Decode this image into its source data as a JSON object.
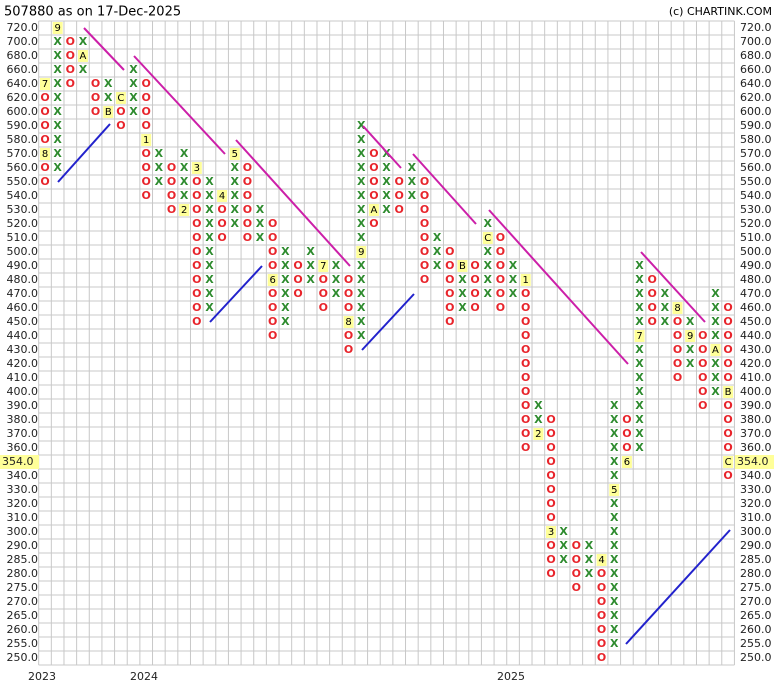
{
  "chart_data": {
    "type": "point-and-figure",
    "title": "507880 as on 17-Dec-2025",
    "credit": "(c) CHARTINK.COM",
    "colors": {
      "X": "#2e8b2e",
      "O": "#e8242b",
      "label_bg": "#ffff99",
      "grid": "#c8c8c8"
    },
    "grid": true,
    "yticks": [
      {
        "value": 720,
        "label": "720.0"
      },
      {
        "value": 700,
        "label": "700.0"
      },
      {
        "value": 680,
        "label": "680.0"
      },
      {
        "value": 660,
        "label": "660.0"
      },
      {
        "value": 640,
        "label": "640.0"
      },
      {
        "value": 620,
        "label": "620.0"
      },
      {
        "value": 600,
        "label": "600.0"
      },
      {
        "value": 590,
        "label": "590.0"
      },
      {
        "value": 580,
        "label": "580.0"
      },
      {
        "value": 570,
        "label": "570.0"
      },
      {
        "value": 560,
        "label": "560.0"
      },
      {
        "value": 550,
        "label": "550.0"
      },
      {
        "value": 540,
        "label": "540.0"
      },
      {
        "value": 530,
        "label": "530.0"
      },
      {
        "value": 520,
        "label": "520.0"
      },
      {
        "value": 510,
        "label": "510.0"
      },
      {
        "value": 500,
        "label": "500.0"
      },
      {
        "value": 490,
        "label": "490.0"
      },
      {
        "value": 480,
        "label": "480.0"
      },
      {
        "value": 470,
        "label": "470.0"
      },
      {
        "value": 460,
        "label": "460.0"
      },
      {
        "value": 450,
        "label": "450.0"
      },
      {
        "value": 440,
        "label": "440.0"
      },
      {
        "value": 430,
        "label": "430.0"
      },
      {
        "value": 420,
        "label": "420.0"
      },
      {
        "value": 410,
        "label": "410.0"
      },
      {
        "value": 400,
        "label": "400.0"
      },
      {
        "value": 390,
        "label": "390.0"
      },
      {
        "value": 380,
        "label": "380.0"
      },
      {
        "value": 370,
        "label": "370.0"
      },
      {
        "value": 360,
        "label": "360.0"
      },
      {
        "value": 350,
        "label": null
      },
      {
        "value": 340,
        "label": "340.0"
      },
      {
        "value": 330,
        "label": "330.0"
      },
      {
        "value": 320,
        "label": "320.0"
      },
      {
        "value": 310,
        "label": "310.0"
      },
      {
        "value": 300,
        "label": "300.0"
      },
      {
        "value": 290,
        "label": "290.0"
      },
      {
        "value": 285,
        "label": "285.0"
      },
      {
        "value": 280,
        "label": "280.0"
      },
      {
        "value": 275,
        "label": "275.0"
      },
      {
        "value": 270,
        "label": "270.0"
      },
      {
        "value": 265,
        "label": "265.0"
      },
      {
        "value": 260,
        "label": "260.0"
      },
      {
        "value": 255,
        "label": "255.0"
      },
      {
        "value": 250,
        "label": "250.0"
      }
    ],
    "last_price": {
      "value": 354,
      "label": "354.0"
    },
    "years": [
      "2023",
      "2024",
      "2025"
    ],
    "columns": [
      {
        "type": "O",
        "high": 640,
        "low": 550,
        "labels": [
          {
            "price": 640,
            "label": "7"
          },
          {
            "price": 570,
            "label": "8"
          }
        ]
      },
      {
        "type": "X",
        "high": 720,
        "low": 560,
        "labels": [
          {
            "price": 720,
            "label": "9"
          }
        ]
      },
      {
        "type": "O",
        "high": 700,
        "low": 640,
        "labels": []
      },
      {
        "type": "X",
        "high": 700,
        "low": 660,
        "labels": [
          {
            "price": 680,
            "label": "A"
          }
        ]
      },
      {
        "type": "O",
        "high": 640,
        "low": 600,
        "labels": []
      },
      {
        "type": "X",
        "high": 640,
        "low": 600,
        "labels": [
          {
            "price": 600,
            "label": "B"
          }
        ]
      },
      {
        "type": "O",
        "high": 620,
        "low": 590,
        "labels": [
          {
            "price": 620,
            "label": "C"
          }
        ]
      },
      {
        "type": "X",
        "high": 660,
        "low": 600,
        "labels": []
      },
      {
        "type": "O",
        "high": 640,
        "low": 540,
        "labels": [
          {
            "price": 580,
            "label": "1"
          }
        ]
      },
      {
        "type": "X",
        "high": 570,
        "low": 550,
        "labels": []
      },
      {
        "type": "O",
        "high": 560,
        "low": 530,
        "labels": []
      },
      {
        "type": "X",
        "high": 570,
        "low": 530,
        "labels": [
          {
            "price": 530,
            "label": "2"
          }
        ]
      },
      {
        "type": "O",
        "high": 560,
        "low": 450,
        "labels": [
          {
            "price": 560,
            "label": "3"
          }
        ]
      },
      {
        "type": "X",
        "high": 550,
        "low": 460,
        "labels": []
      },
      {
        "type": "O",
        "high": 540,
        "low": 510,
        "labels": [
          {
            "price": 540,
            "label": "4"
          }
        ]
      },
      {
        "type": "X",
        "high": 570,
        "low": 520,
        "labels": [
          {
            "price": 570,
            "label": "5"
          }
        ]
      },
      {
        "type": "O",
        "high": 560,
        "low": 510,
        "labels": []
      },
      {
        "type": "X",
        "high": 530,
        "low": 510,
        "labels": []
      },
      {
        "type": "O",
        "high": 520,
        "low": 440,
        "labels": [
          {
            "price": 480,
            "label": "6"
          }
        ]
      },
      {
        "type": "X",
        "high": 500,
        "low": 450,
        "labels": []
      },
      {
        "type": "O",
        "high": 490,
        "low": 470,
        "labels": []
      },
      {
        "type": "X",
        "high": 500,
        "low": 480,
        "labels": []
      },
      {
        "type": "O",
        "high": 490,
        "low": 460,
        "labels": [
          {
            "price": 490,
            "label": "7"
          }
        ]
      },
      {
        "type": "X",
        "high": 490,
        "low": 470,
        "labels": []
      },
      {
        "type": "O",
        "high": 480,
        "low": 430,
        "labels": [
          {
            "price": 450,
            "label": "8"
          }
        ]
      },
      {
        "type": "X",
        "high": 590,
        "low": 440,
        "labels": [
          {
            "price": 500,
            "label": "9"
          }
        ]
      },
      {
        "type": "O",
        "high": 570,
        "low": 520,
        "labels": [
          {
            "price": 530,
            "label": "A"
          }
        ]
      },
      {
        "type": "X",
        "high": 570,
        "low": 530,
        "labels": []
      },
      {
        "type": "O",
        "high": 550,
        "low": 530,
        "labels": []
      },
      {
        "type": "X",
        "high": 560,
        "low": 540,
        "labels": []
      },
      {
        "type": "O",
        "high": 550,
        "low": 480,
        "labels": []
      },
      {
        "type": "X",
        "high": 510,
        "low": 490,
        "labels": []
      },
      {
        "type": "O",
        "high": 500,
        "low": 450,
        "labels": []
      },
      {
        "type": "X",
        "high": 490,
        "low": 460,
        "labels": [
          {
            "price": 490,
            "label": "B"
          }
        ]
      },
      {
        "type": "O",
        "high": 490,
        "low": 460,
        "labels": []
      },
      {
        "type": "X",
        "high": 520,
        "low": 470,
        "labels": [
          {
            "price": 510,
            "label": "C"
          }
        ]
      },
      {
        "type": "O",
        "high": 510,
        "low": 460,
        "labels": []
      },
      {
        "type": "X",
        "high": 490,
        "low": 470,
        "labels": []
      },
      {
        "type": "O",
        "high": 480,
        "low": 360,
        "labels": [
          {
            "price": 480,
            "label": "1"
          }
        ]
      },
      {
        "type": "X",
        "high": 390,
        "low": 370,
        "labels": [
          {
            "price": 370,
            "label": "2"
          }
        ]
      },
      {
        "type": "O",
        "high": 380,
        "low": 280,
        "labels": [
          {
            "price": 300,
            "label": "3"
          }
        ]
      },
      {
        "type": "X",
        "high": 300,
        "low": 285,
        "labels": []
      },
      {
        "type": "O",
        "high": 290,
        "low": 275,
        "labels": []
      },
      {
        "type": "X",
        "high": 290,
        "low": 280,
        "labels": []
      },
      {
        "type": "O",
        "high": 285,
        "low": 250,
        "labels": [
          {
            "price": 285,
            "label": "4"
          }
        ]
      },
      {
        "type": "X",
        "high": 390,
        "low": 255,
        "labels": [
          {
            "price": 330,
            "label": "5"
          }
        ]
      },
      {
        "type": "O",
        "high": 380,
        "low": 350,
        "labels": [
          {
            "price": 350,
            "label": "6"
          }
        ]
      },
      {
        "type": "X",
        "high": 490,
        "low": 360,
        "labels": [
          {
            "price": 440,
            "label": "7"
          }
        ]
      },
      {
        "type": "O",
        "high": 480,
        "low": 450,
        "labels": []
      },
      {
        "type": "X",
        "high": 470,
        "low": 450,
        "labels": []
      },
      {
        "type": "O",
        "high": 460,
        "low": 410,
        "labels": [
          {
            "price": 460,
            "label": "8"
          }
        ]
      },
      {
        "type": "X",
        "high": 450,
        "low": 420,
        "labels": [
          {
            "price": 440,
            "label": "9"
          }
        ]
      },
      {
        "type": "O",
        "high": 440,
        "low": 390,
        "labels": []
      },
      {
        "type": "X",
        "high": 470,
        "low": 400,
        "labels": [
          {
            "price": 430,
            "label": "A"
          }
        ]
      },
      {
        "type": "O",
        "high": 460,
        "low": 340,
        "labels": [
          {
            "price": 400,
            "label": "B"
          },
          {
            "price": 350,
            "label": "C"
          }
        ]
      }
    ]
  }
}
